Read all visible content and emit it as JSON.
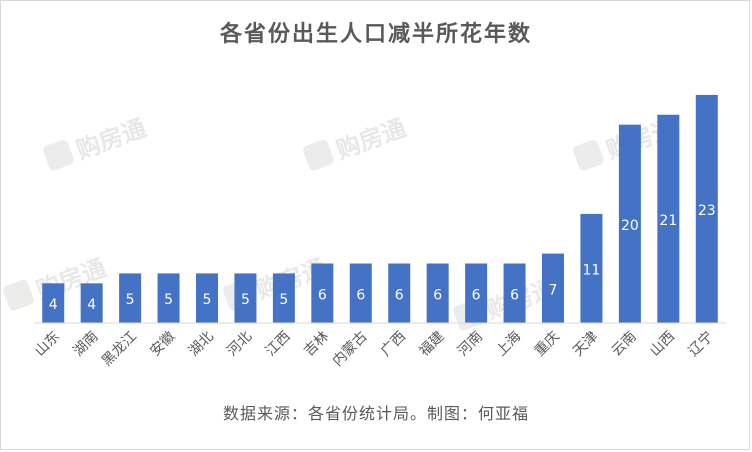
{
  "watermark": {
    "text": "购房通"
  },
  "chart_data": {
    "type": "bar",
    "title": "各省份出生人口减半所花年数",
    "source": "数据来源：各省份统计局。制图：何亚福",
    "categories": [
      "山东",
      "湖南",
      "黑龙江",
      "安徽",
      "湖北",
      "河北",
      "江西",
      "吉林",
      "内蒙古",
      "广西",
      "福建",
      "河南",
      "上海",
      "重庆",
      "天津",
      "云南",
      "山西",
      "辽宁"
    ],
    "values": [
      4,
      4,
      5,
      5,
      5,
      5,
      5,
      6,
      6,
      6,
      6,
      6,
      6,
      7,
      11,
      20,
      21,
      23
    ],
    "ylim": [
      0,
      24
    ],
    "bar_color": "#4472c4",
    "label_color": "#ffffff",
    "grid": false,
    "legend": "none"
  }
}
